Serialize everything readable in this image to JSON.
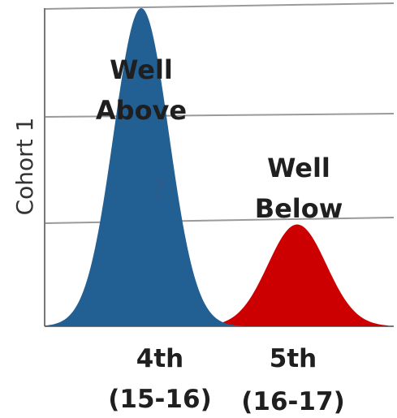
{
  "colors": {
    "series_blue": "#225f93",
    "series_red": "#cc0000",
    "grid": "#9a9a9a",
    "axis": "#777777",
    "text": "#1f1f1f"
  },
  "chart_data": {
    "type": "area",
    "ylabel": "Cohort 1",
    "categories": [
      {
        "line1": "4th",
        "line2": "(15-16)"
      },
      {
        "line1": "5th",
        "line2": "(16-17)"
      }
    ],
    "series": [
      {
        "color": "#225f93",
        "peak_label_lines": [
          "Well",
          "Above"
        ],
        "relative_peak": 1.0
      },
      {
        "color": "#cc0000",
        "peak_label_lines": [
          "Well",
          "Below"
        ],
        "relative_peak": 0.32
      }
    ],
    "annotation": "?",
    "grid": true,
    "gridlines": 4
  }
}
